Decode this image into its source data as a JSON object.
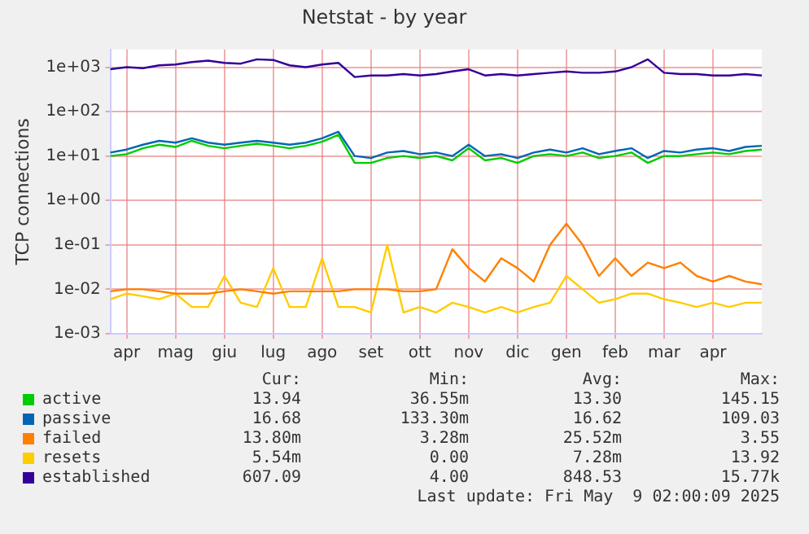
{
  "chart_data": {
    "type": "line",
    "title": "Netstat - by year",
    "ylabel": "TCP connections",
    "log": "y",
    "grid": true,
    "legend": "bottom",
    "marker": "none",
    "line_style": "solid",
    "categories": [
      null,
      "apr",
      null,
      null,
      "mag",
      null,
      null,
      "giu",
      null,
      null,
      "lug",
      null,
      null,
      "ago",
      null,
      null,
      "set",
      null,
      null,
      "ott",
      null,
      null,
      "nov",
      null,
      null,
      "dic",
      null,
      null,
      "gen",
      null,
      null,
      "feb",
      null,
      null,
      "mar",
      null,
      null,
      "apr",
      null,
      null,
      null
    ],
    "ylim": [
      0.001,
      2500
    ],
    "yticks": [
      {
        "value": 0.001,
        "label": "1e-03"
      },
      {
        "value": 0.01,
        "label": "1e-02"
      },
      {
        "value": 0.1,
        "label": "1e-01"
      },
      {
        "value": 1,
        "label": "1e+00"
      },
      {
        "value": 10,
        "label": "1e+01"
      },
      {
        "value": 100,
        "label": "1e+02"
      },
      {
        "value": 1000,
        "label": "1e+03"
      }
    ],
    "series": [
      {
        "name": "active",
        "color": "#00cc00",
        "values": [
          10,
          11,
          15,
          18,
          16,
          22,
          17,
          15,
          17,
          19,
          17,
          15,
          17,
          21,
          30,
          7,
          7,
          9,
          10,
          9,
          10,
          8,
          15,
          8,
          9,
          7,
          10,
          11,
          10,
          12,
          9,
          10,
          12,
          7,
          10,
          10,
          11,
          12,
          11,
          13,
          14
        ]
      },
      {
        "name": "passive",
        "color": "#0066b3",
        "values": [
          12,
          14,
          18,
          22,
          20,
          25,
          20,
          18,
          20,
          22,
          20,
          18,
          20,
          25,
          35,
          10,
          9,
          12,
          13,
          11,
          12,
          10,
          18,
          10,
          11,
          9,
          12,
          14,
          12,
          15,
          11,
          13,
          15,
          9,
          13,
          12,
          14,
          15,
          13,
          16,
          17
        ]
      },
      {
        "name": "failed",
        "color": "#ff8000",
        "values": [
          0.009,
          0.01,
          0.01,
          0.009,
          0.008,
          0.008,
          0.008,
          0.009,
          0.01,
          0.009,
          0.008,
          0.009,
          0.009,
          0.009,
          0.009,
          0.01,
          0.01,
          0.01,
          0.009,
          0.009,
          0.01,
          0.08,
          0.03,
          0.015,
          0.05,
          0.03,
          0.015,
          0.1,
          0.3,
          0.1,
          0.02,
          0.05,
          0.02,
          0.04,
          0.03,
          0.04,
          0.02,
          0.015,
          0.02,
          0.015,
          0.013
        ]
      },
      {
        "name": "resets",
        "color": "#ffcc00",
        "values": [
          0.006,
          0.008,
          0.007,
          0.006,
          0.008,
          0.004,
          0.004,
          0.02,
          0.005,
          0.004,
          0.03,
          0.004,
          0.004,
          0.05,
          0.004,
          0.004,
          0.003,
          0.1,
          0.003,
          0.004,
          0.003,
          0.005,
          0.004,
          0.003,
          0.004,
          0.003,
          0.004,
          0.005,
          0.02,
          0.01,
          0.005,
          0.006,
          0.008,
          0.008,
          0.006,
          0.005,
          0.004,
          0.005,
          0.004,
          0.005,
          0.005
        ]
      },
      {
        "name": "established",
        "color": "#330099",
        "values": [
          900,
          1000,
          950,
          1100,
          1150,
          1300,
          1400,
          1250,
          1200,
          1500,
          1450,
          1100,
          1000,
          1150,
          1250,
          600,
          650,
          650,
          700,
          650,
          700,
          800,
          900,
          650,
          700,
          650,
          700,
          750,
          800,
          750,
          750,
          800,
          1000,
          1500,
          750,
          700,
          700,
          650,
          650,
          700,
          650
        ]
      }
    ],
    "annotations": [
      "Cur:",
      "Min:",
      "Avg:",
      "Max:",
      "13.94",
      "36.55m",
      "13.30",
      "145.15",
      "16.68",
      "133.30m",
      "16.62",
      "109.03",
      "13.80m",
      "3.28m",
      "25.52m",
      "3.55",
      "5.54m",
      "0.00",
      "7.28m",
      "13.92",
      "607.09",
      "4.00",
      "848.53",
      "15.77k",
      "Last update: Fri May  9 02:00:09 2025"
    ]
  }
}
